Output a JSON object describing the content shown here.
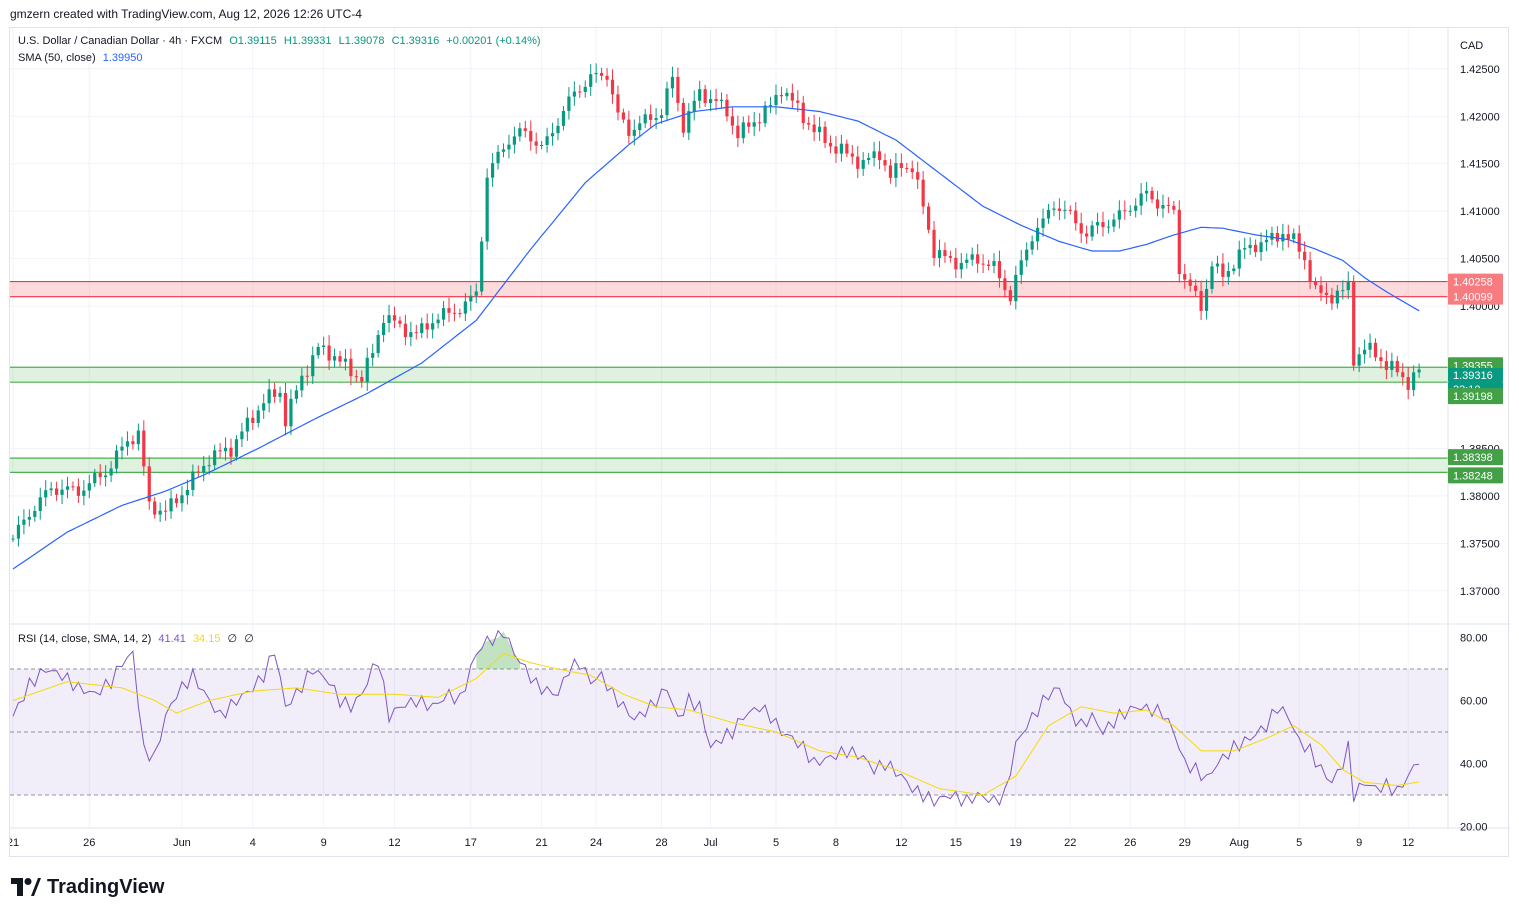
{
  "header": {
    "attribution": "gmzern created with TradingView.com, Aug 12, 2026 12:26 UTC-4"
  },
  "legend": {
    "symbol": "U.S. Dollar / Canadian Dollar · 4h · FXCM",
    "open": "O1.39115",
    "high": "H1.39331",
    "low": "L1.39078",
    "close": "C1.39316",
    "change": "+0.00201 (+0.14%)",
    "sma_label": "SMA (50, close)",
    "sma_value": "1.39950",
    "rsi_label": "RSI (14, close, SMA, 14, 2)",
    "rsi_value": "41.41",
    "rsi_ma_value": "34.15",
    "rsi_extra1": "∅",
    "rsi_extra2": "∅"
  },
  "currency": "CAD",
  "footer": {
    "brand": "TradingView"
  },
  "colors": {
    "up": "#089981",
    "down": "#f23645",
    "sma": "#2962ff",
    "rsi": "#7e57c2",
    "rsi_ma": "#f5d90a",
    "resistance": "#f23645",
    "support": "#4caf50"
  },
  "chart_data": {
    "type": "candlestick",
    "symbol": "USDCAD",
    "timeframe": "4h",
    "y_ticks": [
      "1.42500",
      "1.42000",
      "1.41500",
      "1.41000",
      "1.40500",
      "1.40000",
      "1.38500",
      "1.38000",
      "1.37500",
      "1.37000"
    ],
    "ylim": [
      1.3665,
      1.4293
    ],
    "x_ticks": [
      "21",
      "26",
      "Jun",
      "4",
      "9",
      "12",
      "17",
      "21",
      "24",
      "28",
      "Jul",
      "5",
      "8",
      "12",
      "15",
      "19",
      "22",
      "26",
      "29",
      "Aug",
      "5",
      "9",
      "12"
    ],
    "close_path": [
      [
        0,
        1.3755
      ],
      [
        3,
        1.3782
      ],
      [
        7,
        1.3808
      ],
      [
        12,
        1.3805
      ],
      [
        17,
        1.3825
      ],
      [
        21,
        1.3858
      ],
      [
        23,
        1.3866
      ],
      [
        25,
        1.379
      ],
      [
        28,
        1.3783
      ],
      [
        32,
        1.381
      ],
      [
        36,
        1.384
      ],
      [
        40,
        1.385
      ],
      [
        43,
        1.3875
      ],
      [
        46,
        1.39
      ],
      [
        49,
        1.391
      ],
      [
        50,
        1.388
      ],
      [
        53,
        1.3925
      ],
      [
        56,
        1.3955
      ],
      [
        59,
        1.3948
      ],
      [
        62,
        1.393
      ],
      [
        64,
        1.3925
      ],
      [
        66,
        1.395
      ],
      [
        68,
        1.399
      ],
      [
        71,
        1.3978
      ],
      [
        74,
        1.397
      ],
      [
        77,
        1.3985
      ],
      [
        80,
        1.3993
      ],
      [
        83,
        1.4
      ],
      [
        85,
        1.4015
      ],
      [
        87,
        1.4135
      ],
      [
        90,
        1.417
      ],
      [
        94,
        1.4185
      ],
      [
        97,
        1.4165
      ],
      [
        100,
        1.4195
      ],
      [
        103,
        1.4225
      ],
      [
        106,
        1.424
      ],
      [
        109,
        1.4245
      ],
      [
        111,
        1.42
      ],
      [
        113,
        1.4185
      ],
      [
        116,
        1.4195
      ],
      [
        119,
        1.4205
      ],
      [
        121,
        1.424
      ],
      [
        123,
        1.419
      ],
      [
        126,
        1.4225
      ],
      [
        129,
        1.4215
      ],
      [
        131,
        1.4205
      ],
      [
        133,
        1.418
      ],
      [
        136,
        1.4195
      ],
      [
        139,
        1.421
      ],
      [
        141,
        1.423
      ],
      [
        143,
        1.4215
      ],
      [
        145,
        1.42
      ],
      [
        147,
        1.4185
      ],
      [
        150,
        1.417
      ],
      [
        153,
        1.416
      ],
      [
        156,
        1.415
      ],
      [
        159,
        1.4162
      ],
      [
        161,
        1.4135
      ],
      [
        163,
        1.415
      ],
      [
        165,
        1.4145
      ],
      [
        167,
        1.4105
      ],
      [
        169,
        1.4058
      ],
      [
        171,
        1.405
      ],
      [
        174,
        1.4045
      ],
      [
        177,
        1.405
      ],
      [
        180,
        1.404
      ],
      [
        182,
        1.402
      ],
      [
        183,
        1.401
      ],
      [
        185,
        1.4045
      ],
      [
        187,
        1.4075
      ],
      [
        189,
        1.4088
      ],
      [
        191,
        1.4108
      ],
      [
        194,
        1.4095
      ],
      [
        197,
        1.4075
      ],
      [
        199,
        1.4085
      ],
      [
        202,
        1.409
      ],
      [
        205,
        1.4105
      ],
      [
        208,
        1.4118
      ],
      [
        211,
        1.4105
      ],
      [
        213,
        1.4098
      ],
      [
        214,
        1.404
      ],
      [
        216,
        1.402
      ],
      [
        218,
        1.3998
      ],
      [
        220,
        1.4045
      ],
      [
        222,
        1.403
      ],
      [
        225,
        1.4055
      ],
      [
        228,
        1.4065
      ],
      [
        231,
        1.407
      ],
      [
        233,
        1.4078
      ],
      [
        235,
        1.4068
      ],
      [
        237,
        1.405
      ],
      [
        239,
        1.4015
      ],
      [
        241,
        1.401
      ],
      [
        244,
        1.4015
      ],
      [
        245,
        1.402
      ],
      [
        246,
        1.3945
      ],
      [
        248,
        1.3955
      ],
      [
        250,
        1.395
      ],
      [
        252,
        1.3938
      ],
      [
        254,
        1.393
      ],
      [
        256,
        1.392
      ],
      [
        258,
        1.3931
      ]
    ],
    "sma50_path": [
      [
        0,
        1.3723
      ],
      [
        10,
        1.3762
      ],
      [
        20,
        1.379
      ],
      [
        28,
        1.3805
      ],
      [
        35,
        1.3822
      ],
      [
        45,
        1.385
      ],
      [
        55,
        1.388
      ],
      [
        65,
        1.3908
      ],
      [
        75,
        1.394
      ],
      [
        85,
        1.3985
      ],
      [
        95,
        1.406
      ],
      [
        105,
        1.413
      ],
      [
        113,
        1.417
      ],
      [
        118,
        1.4192
      ],
      [
        125,
        1.4205
      ],
      [
        132,
        1.421
      ],
      [
        140,
        1.421
      ],
      [
        148,
        1.4205
      ],
      [
        155,
        1.4195
      ],
      [
        162,
        1.4175
      ],
      [
        170,
        1.414
      ],
      [
        178,
        1.4105
      ],
      [
        185,
        1.4085
      ],
      [
        192,
        1.4068
      ],
      [
        198,
        1.4058
      ],
      [
        203,
        1.4058
      ],
      [
        208,
        1.4065
      ],
      [
        213,
        1.4075
      ],
      [
        218,
        1.4083
      ],
      [
        222,
        1.4082
      ],
      [
        228,
        1.4075
      ],
      [
        234,
        1.407
      ],
      [
        239,
        1.406
      ],
      [
        244,
        1.4048
      ],
      [
        248,
        1.403
      ],
      [
        252,
        1.4015
      ],
      [
        258,
        1.3995
      ]
    ],
    "price_labels": [
      {
        "value": "1.40258",
        "type": "resistance"
      },
      {
        "value": "1.40099",
        "type": "resistance"
      },
      {
        "value": "1.39355",
        "type": "support"
      },
      {
        "value": "1.39316",
        "type": "current"
      },
      {
        "value": "33:10",
        "type": "countdown"
      },
      {
        "value": "1.39198",
        "type": "support"
      },
      {
        "value": "1.38398",
        "type": "support"
      },
      {
        "value": "1.38248",
        "type": "support"
      }
    ],
    "zones": [
      {
        "name": "resistance-zone",
        "top": 1.40258,
        "bottom": 1.40099,
        "type": "resistance"
      },
      {
        "name": "support-zone-1",
        "top": 1.39355,
        "bottom": 1.39198,
        "type": "support"
      },
      {
        "name": "support-zone-2",
        "top": 1.38398,
        "bottom": 1.38248,
        "type": "support"
      }
    ],
    "rsi": {
      "y_ticks": [
        "80.00",
        "60.00",
        "40.00",
        "20.00"
      ],
      "ylim": [
        19.5,
        84
      ],
      "band": [
        30,
        70
      ],
      "middle": 50,
      "path": [
        [
          0,
          55
        ],
        [
          3,
          65
        ],
        [
          6,
          70
        ],
        [
          9,
          68
        ],
        [
          12,
          64
        ],
        [
          15,
          62
        ],
        [
          18,
          66
        ],
        [
          20,
          72
        ],
        [
          22,
          75
        ],
        [
          24,
          44
        ],
        [
          26,
          42
        ],
        [
          28,
          55
        ],
        [
          30,
          62
        ],
        [
          33,
          68
        ],
        [
          36,
          60
        ],
        [
          38,
          55
        ],
        [
          41,
          60
        ],
        [
          44,
          64
        ],
        [
          46,
          68
        ],
        [
          48,
          76
        ],
        [
          50,
          58
        ],
        [
          52,
          62
        ],
        [
          55,
          70
        ],
        [
          58,
          66
        ],
        [
          60,
          60
        ],
        [
          62,
          58
        ],
        [
          64,
          62
        ],
        [
          66,
          70
        ],
        [
          67,
          73
        ],
        [
          69,
          55
        ],
        [
          71,
          58
        ],
        [
          74,
          60
        ],
        [
          77,
          58
        ],
        [
          80,
          62
        ],
        [
          82,
          60
        ],
        [
          85,
          75
        ],
        [
          87,
          79
        ],
        [
          89,
          80
        ],
        [
          90,
          82
        ],
        [
          92,
          75
        ],
        [
          94,
          70
        ],
        [
          96,
          65
        ],
        [
          98,
          63
        ],
        [
          100,
          62
        ],
        [
          102,
          70
        ],
        [
          104,
          72
        ],
        [
          106,
          66
        ],
        [
          108,
          68
        ],
        [
          110,
          62
        ],
        [
          112,
          58
        ],
        [
          114,
          54
        ],
        [
          117,
          58
        ],
        [
          120,
          64
        ],
        [
          122,
          54
        ],
        [
          124,
          60
        ],
        [
          126,
          58
        ],
        [
          128,
          45
        ],
        [
          130,
          48
        ],
        [
          132,
          50
        ],
        [
          134,
          55
        ],
        [
          137,
          58
        ],
        [
          139,
          55
        ],
        [
          141,
          50
        ],
        [
          143,
          48
        ],
        [
          145,
          45
        ],
        [
          147,
          40
        ],
        [
          150,
          42
        ],
        [
          153,
          44
        ],
        [
          156,
          42
        ],
        [
          158,
          38
        ],
        [
          160,
          40
        ],
        [
          163,
          36
        ],
        [
          165,
          32
        ],
        [
          167,
          30
        ],
        [
          169,
          28
        ],
        [
          172,
          30
        ],
        [
          175,
          28
        ],
        [
          177,
          30
        ],
        [
          180,
          28
        ],
        [
          182,
          30
        ],
        [
          184,
          46
        ],
        [
          186,
          52
        ],
        [
          188,
          57
        ],
        [
          190,
          62
        ],
        [
          192,
          64
        ],
        [
          194,
          56
        ],
        [
          196,
          52
        ],
        [
          198,
          55
        ],
        [
          200,
          50
        ],
        [
          203,
          55
        ],
        [
          206,
          58
        ],
        [
          209,
          57
        ],
        [
          211,
          56
        ],
        [
          213,
          50
        ],
        [
          215,
          40
        ],
        [
          217,
          38
        ],
        [
          219,
          35
        ],
        [
          221,
          40
        ],
        [
          224,
          45
        ],
        [
          227,
          48
        ],
        [
          230,
          52
        ],
        [
          232,
          58
        ],
        [
          234,
          55
        ],
        [
          236,
          47
        ],
        [
          238,
          44
        ],
        [
          240,
          38
        ],
        [
          242,
          34
        ],
        [
          244,
          40
        ],
        [
          245,
          45
        ],
        [
          246,
          30
        ],
        [
          248,
          34
        ],
        [
          250,
          32
        ],
        [
          252,
          33
        ],
        [
          254,
          31
        ],
        [
          256,
          36
        ],
        [
          258,
          41.4
        ]
      ],
      "ma_path": [
        [
          0,
          60
        ],
        [
          10,
          66
        ],
        [
          20,
          64
        ],
        [
          26,
          60
        ],
        [
          30,
          56
        ],
        [
          36,
          60
        ],
        [
          44,
          63
        ],
        [
          52,
          64
        ],
        [
          60,
          62
        ],
        [
          70,
          62
        ],
        [
          78,
          61
        ],
        [
          85,
          67
        ],
        [
          90,
          75
        ],
        [
          95,
          72
        ],
        [
          100,
          70
        ],
        [
          106,
          68
        ],
        [
          112,
          62
        ],
        [
          118,
          58
        ],
        [
          124,
          57
        ],
        [
          132,
          53
        ],
        [
          140,
          50
        ],
        [
          148,
          44
        ],
        [
          155,
          42
        ],
        [
          162,
          38
        ],
        [
          170,
          32
        ],
        [
          178,
          30
        ],
        [
          184,
          36
        ],
        [
          190,
          52
        ],
        [
          196,
          58
        ],
        [
          202,
          56
        ],
        [
          208,
          57
        ],
        [
          213,
          52
        ],
        [
          218,
          44
        ],
        [
          224,
          44
        ],
        [
          230,
          48
        ],
        [
          235,
          52
        ],
        [
          240,
          46
        ],
        [
          244,
          38
        ],
        [
          248,
          34
        ],
        [
          254,
          33
        ],
        [
          258,
          34.15
        ]
      ]
    }
  }
}
